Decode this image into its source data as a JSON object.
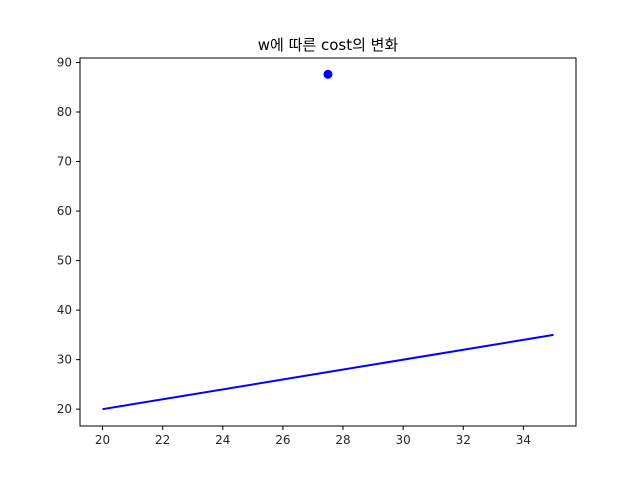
{
  "chart_data": {
    "type": "line",
    "title": "w에 따른 cost의 변화",
    "xlabel": "",
    "ylabel": "",
    "xlim": [
      19.25,
      35.75
    ],
    "ylim": [
      16.6,
      90.9
    ],
    "xticks": [
      20,
      22,
      24,
      26,
      28,
      30,
      32,
      34
    ],
    "yticks": [
      20,
      30,
      40,
      50,
      60,
      70,
      80,
      90
    ],
    "grid": false,
    "series": [
      {
        "type": "line",
        "color": "#0000ff",
        "x": [
          20,
          35
        ],
        "y": [
          20,
          35
        ]
      },
      {
        "type": "scatter",
        "color": "#0000ff",
        "x": [
          27.5
        ],
        "y": [
          87.6
        ]
      }
    ]
  }
}
